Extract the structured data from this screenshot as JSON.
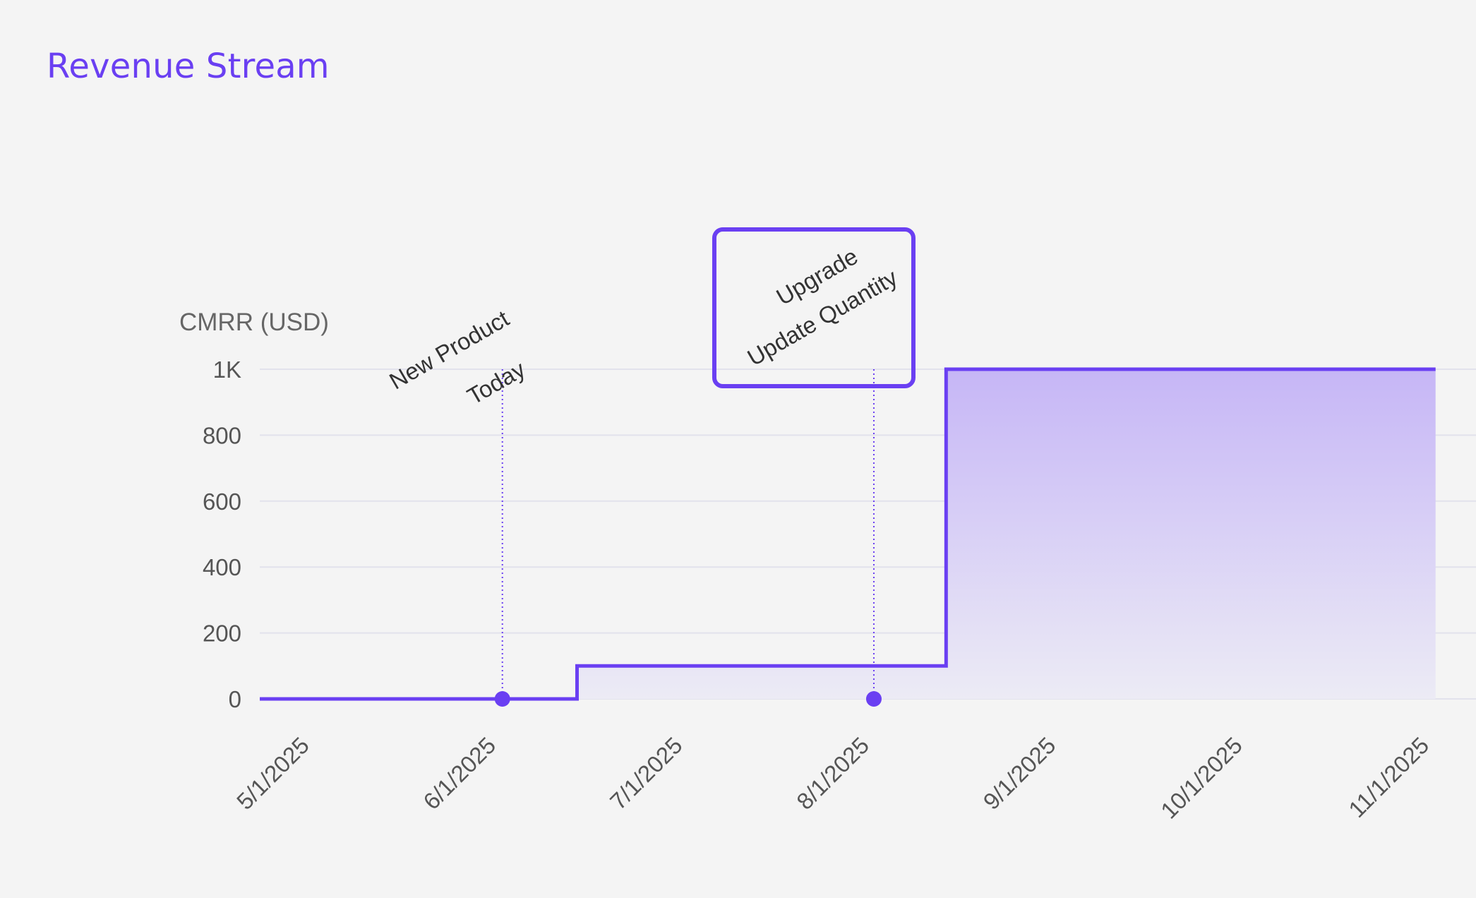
{
  "header": {
    "title": "Revenue Stream"
  },
  "chart_data": {
    "type": "area",
    "step": true,
    "ylabel": "CMRR (USD)",
    "ylim": [
      0,
      1000
    ],
    "yticks": [
      {
        "value": 0,
        "label": "0"
      },
      {
        "value": 200,
        "label": "200"
      },
      {
        "value": 400,
        "label": "400"
      },
      {
        "value": 600,
        "label": "600"
      },
      {
        "value": 800,
        "label": "800"
      },
      {
        "value": 1000,
        "label": "1K"
      }
    ],
    "x_ticks": [
      "5/1/2025",
      "6/1/2025",
      "7/1/2025",
      "8/1/2025",
      "9/1/2025",
      "10/1/2025",
      "11/1/2025"
    ],
    "x_tick_dates": [
      "2025-05-01",
      "2025-06-01",
      "2025-07-01",
      "2025-08-01",
      "2025-09-01",
      "2025-10-01",
      "2025-11-01"
    ],
    "series": [
      {
        "points": [
          {
            "x": "2025-05-01",
            "y": 0
          },
          {
            "x": "2025-06-22",
            "y": 0
          },
          {
            "x": "2025-06-22",
            "y": 100
          },
          {
            "x": "2025-08-22",
            "y": 100
          },
          {
            "x": "2025-08-22",
            "y": 1000
          },
          {
            "x": "2025-11-10",
            "y": 1000
          }
        ]
      }
    ],
    "events": [
      {
        "x": "2025-06-10",
        "lines": [
          "New Product",
          "Today"
        ],
        "highlighted": false
      },
      {
        "x": "2025-08-10",
        "lines": [
          "Upgrade",
          "Update Quantity"
        ],
        "highlighted": true
      }
    ],
    "grid": true,
    "colors": {
      "line": "#6a3ff2",
      "fill_top": "#c6b6f6",
      "fill_bottom": "#ecebf5",
      "grid": "#e2e2ec",
      "highlight": "#6a3ff2"
    }
  }
}
